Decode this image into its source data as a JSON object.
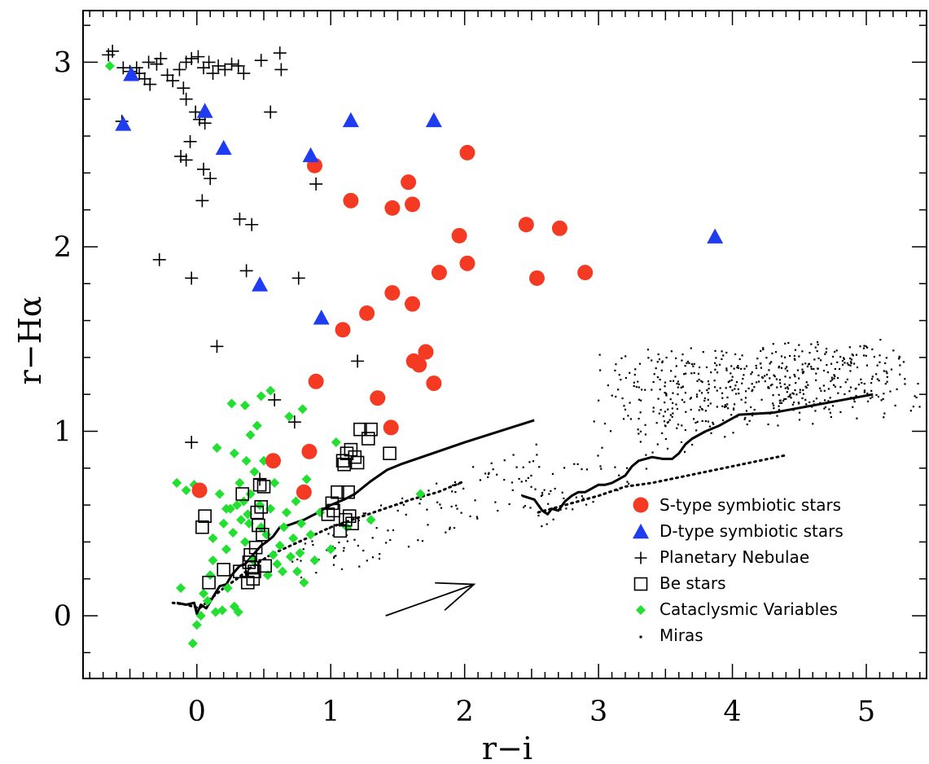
{
  "chart_data": {
    "type": "scatter",
    "xlabel": "r−i",
    "ylabel": "r−Hα",
    "xlim": [
      -0.85,
      5.45
    ],
    "ylim": [
      -0.34,
      3.28
    ],
    "xticks": [
      "0",
      "1",
      "2",
      "3",
      "4",
      "5"
    ],
    "yticks": [
      "0",
      "1",
      "2",
      "3"
    ],
    "grid": false,
    "legend": {
      "placement": "bottom-right",
      "entries": [
        "S-type symbiotic stars",
        "D-type symbiotic stars",
        "Planetary Nebulae",
        "Be stars",
        "Cataclysmic Variables",
        "Miras"
      ]
    },
    "colors": {
      "s_type": "#f53a24",
      "d_type": "#1f3cf0",
      "planetary_nebulae": "#000000",
      "be_stars": "#000000",
      "cataclysmic_variables": "#22e030",
      "miras": "#000000",
      "tracks": "#000000"
    },
    "s_type_symbiotic_stars": [
      [
        0.02,
        0.68
      ],
      [
        0.57,
        0.84
      ],
      [
        0.8,
        0.67
      ],
      [
        0.84,
        0.89
      ],
      [
        0.89,
        1.27
      ],
      [
        0.88,
        2.44
      ],
      [
        1.09,
        1.55
      ],
      [
        1.15,
        2.25
      ],
      [
        1.27,
        1.64
      ],
      [
        1.35,
        1.18
      ],
      [
        1.45,
        1.02
      ],
      [
        1.46,
        2.21
      ],
      [
        1.46,
        1.75
      ],
      [
        1.58,
        2.35
      ],
      [
        1.61,
        2.23
      ],
      [
        1.61,
        1.69
      ],
      [
        1.62,
        1.38
      ],
      [
        1.66,
        1.36
      ],
      [
        1.71,
        1.43
      ],
      [
        1.77,
        1.26
      ],
      [
        1.81,
        1.86
      ],
      [
        1.96,
        2.06
      ],
      [
        2.02,
        2.51
      ],
      [
        2.02,
        1.91
      ],
      [
        2.46,
        2.12
      ],
      [
        2.54,
        1.83
      ],
      [
        2.71,
        2.1
      ],
      [
        2.9,
        1.86
      ]
    ],
    "d_type_symbiotic_stars": [
      [
        -0.49,
        2.93
      ],
      [
        -0.55,
        2.66
      ],
      [
        0.06,
        2.73
      ],
      [
        0.2,
        2.53
      ],
      [
        0.47,
        1.79
      ],
      [
        0.85,
        2.49
      ],
      [
        0.93,
        1.61
      ],
      [
        1.15,
        2.68
      ],
      [
        1.77,
        2.68
      ],
      [
        3.87,
        2.05
      ]
    ],
    "planetary_nebulae": [
      [
        -0.63,
        3.06
      ],
      [
        -0.66,
        3.04
      ],
      [
        -0.55,
        2.97
      ],
      [
        -0.5,
        2.95
      ],
      [
        -0.45,
        2.97
      ],
      [
        -0.43,
        2.94
      ],
      [
        -0.39,
        2.91
      ],
      [
        -0.35,
        2.88
      ],
      [
        -0.3,
        2.99
      ],
      [
        -0.27,
        3.02
      ],
      [
        -0.22,
        2.93
      ],
      [
        -0.18,
        2.9
      ],
      [
        -0.13,
        2.96
      ],
      [
        -0.08,
        3.0
      ],
      [
        -0.04,
        3.02
      ],
      [
        0.01,
        3.03
      ],
      [
        0.05,
        2.97
      ],
      [
        0.09,
        3.0
      ],
      [
        0.12,
        2.94
      ],
      [
        0.16,
        2.98
      ],
      [
        0.21,
        2.96
      ],
      [
        0.26,
        2.99
      ],
      [
        0.31,
        2.98
      ],
      [
        0.35,
        2.94
      ],
      [
        0.48,
        3.01
      ],
      [
        0.62,
        3.05
      ],
      [
        0.63,
        2.96
      ],
      [
        -0.36,
        3.0
      ],
      [
        -0.1,
        2.86
      ],
      [
        -0.08,
        2.8
      ],
      [
        -0.01,
        2.73
      ],
      [
        0.02,
        2.69
      ],
      [
        0.06,
        2.67
      ],
      [
        -0.56,
        2.68
      ],
      [
        0.55,
        2.73
      ],
      [
        -0.12,
        2.49
      ],
      [
        -0.05,
        2.57
      ],
      [
        -0.08,
        2.47
      ],
      [
        0.05,
        2.42
      ],
      [
        0.1,
        2.37
      ],
      [
        0.04,
        2.25
      ],
      [
        0.89,
        2.34
      ],
      [
        0.32,
        2.15
      ],
      [
        0.41,
        2.12
      ],
      [
        -0.28,
        1.93
      ],
      [
        -0.04,
        1.83
      ],
      [
        0.37,
        1.87
      ],
      [
        0.76,
        1.83
      ],
      [
        0.15,
        1.46
      ],
      [
        1.2,
        1.38
      ],
      [
        0.58,
        1.17
      ],
      [
        0.73,
        1.05
      ],
      [
        -0.04,
        0.94
      ],
      [
        0.47,
        0.74
      ]
    ],
    "be_stars": [
      [
        0.04,
        0.48
      ],
      [
        0.06,
        0.54
      ],
      [
        0.09,
        0.18
      ],
      [
        0.2,
        0.25
      ],
      [
        0.32,
        0.24
      ],
      [
        0.34,
        0.66
      ],
      [
        0.38,
        0.18
      ],
      [
        0.39,
        0.29
      ],
      [
        0.4,
        0.33
      ],
      [
        0.41,
        0.26
      ],
      [
        0.42,
        0.2
      ],
      [
        0.43,
        0.24
      ],
      [
        0.44,
        0.37
      ],
      [
        0.45,
        0.56
      ],
      [
        0.46,
        0.49
      ],
      [
        0.47,
        0.71
      ],
      [
        0.48,
        0.59
      ],
      [
        0.49,
        0.44
      ],
      [
        0.5,
        0.7
      ],
      [
        0.51,
        0.27
      ],
      [
        0.98,
        0.55
      ],
      [
        1.01,
        0.61
      ],
      [
        1.02,
        0.57
      ],
      [
        1.05,
        0.67
      ],
      [
        1.07,
        0.46
      ],
      [
        1.09,
        0.84
      ],
      [
        1.1,
        0.82
      ],
      [
        1.11,
        0.52
      ],
      [
        1.12,
        0.88
      ],
      [
        1.13,
        0.67
      ],
      [
        1.14,
        0.54
      ],
      [
        1.15,
        0.9
      ],
      [
        1.16,
        0.5
      ],
      [
        1.18,
        0.86
      ],
      [
        1.2,
        0.83
      ],
      [
        1.22,
        1.01
      ],
      [
        1.28,
        0.96
      ],
      [
        1.3,
        1.01
      ],
      [
        1.44,
        0.88
      ]
    ],
    "cataclysmic_variables": [
      [
        -0.65,
        2.98
      ],
      [
        -0.15,
        0.72
      ],
      [
        -0.08,
        0.68
      ],
      [
        -0.02,
        0.71
      ],
      [
        -0.12,
        0.15
      ],
      [
        0.0,
        -0.05
      ],
      [
        0.03,
        0.0
      ],
      [
        0.05,
        0.12
      ],
      [
        0.08,
        0.08
      ],
      [
        0.1,
        0.22
      ],
      [
        0.12,
        0.3
      ],
      [
        0.14,
        0.02
      ],
      [
        0.15,
        0.91
      ],
      [
        0.17,
        0.66
      ],
      [
        0.2,
        0.5
      ],
      [
        0.22,
        0.36
      ],
      [
        0.25,
        0.58
      ],
      [
        0.27,
        0.45
      ],
      [
        0.28,
        0.05
      ],
      [
        0.3,
        0.6
      ],
      [
        0.32,
        0.72
      ],
      [
        0.33,
        0.52
      ],
      [
        0.35,
        0.62
      ],
      [
        0.36,
        0.4
      ],
      [
        0.37,
        0.84
      ],
      [
        0.38,
        0.55
      ],
      [
        0.39,
        0.5
      ],
      [
        0.4,
        0.66
      ],
      [
        0.42,
        0.3
      ],
      [
        0.43,
        0.78
      ],
      [
        0.45,
        1.03
      ],
      [
        0.47,
        0.6
      ],
      [
        0.48,
        0.48
      ],
      [
        0.5,
        0.84
      ],
      [
        0.52,
        0.44
      ],
      [
        0.53,
        0.22
      ],
      [
        0.55,
        0.58
      ],
      [
        0.57,
        0.33
      ],
      [
        0.58,
        0.72
      ],
      [
        0.6,
        0.28
      ],
      [
        0.62,
        0.38
      ],
      [
        0.64,
        0.24
      ],
      [
        0.65,
        0.48
      ],
      [
        0.67,
        0.56
      ],
      [
        0.69,
        1.08
      ],
      [
        0.7,
        0.32
      ],
      [
        0.72,
        0.42
      ],
      [
        0.74,
        0.62
      ],
      [
        0.75,
        0.24
      ],
      [
        0.77,
        0.34
      ],
      [
        0.78,
        0.5
      ],
      [
        0.79,
        1.12
      ],
      [
        0.8,
        0.18
      ],
      [
        0.82,
        0.74
      ],
      [
        0.85,
        0.44
      ],
      [
        0.88,
        0.3
      ],
      [
        0.92,
        0.56
      ],
      [
        1.0,
        0.36
      ],
      [
        1.04,
        0.94
      ],
      [
        1.12,
        0.48
      ],
      [
        1.3,
        0.52
      ],
      [
        1.67,
        0.66
      ],
      [
        0.26,
        1.15
      ],
      [
        0.36,
        1.14
      ],
      [
        0.48,
        1.19
      ],
      [
        0.55,
        1.22
      ],
      [
        0.23,
        0.15
      ],
      [
        0.31,
        0.02
      ],
      [
        0.22,
        0.58
      ],
      [
        0.28,
        0.88
      ],
      [
        0.4,
        0.98
      ],
      [
        -0.03,
        -0.15
      ],
      [
        0.12,
        0.42
      ],
      [
        0.19,
        0.03
      ]
    ],
    "miras_cloud": {
      "x_range": [
        0.7,
        5.4
      ],
      "y_range": [
        0.2,
        1.5
      ],
      "count": 720
    },
    "track_solid_left": [
      [
        -0.15,
        0.07
      ],
      [
        -0.08,
        0.06
      ],
      [
        -0.02,
        0.07
      ],
      [
        0.0,
        0.01
      ],
      [
        0.03,
        0.06
      ],
      [
        0.07,
        0.04
      ],
      [
        0.12,
        0.1
      ],
      [
        0.17,
        0.16
      ],
      [
        0.22,
        0.17
      ],
      [
        0.26,
        0.22
      ],
      [
        0.32,
        0.27
      ],
      [
        0.36,
        0.28
      ],
      [
        0.42,
        0.33
      ],
      [
        0.48,
        0.38
      ],
      [
        0.52,
        0.4
      ],
      [
        0.57,
        0.43
      ],
      [
        0.62,
        0.48
      ],
      [
        0.68,
        0.49
      ],
      [
        0.72,
        0.5
      ],
      [
        0.8,
        0.52
      ],
      [
        0.88,
        0.55
      ],
      [
        1.0,
        0.6
      ],
      [
        1.1,
        0.63
      ],
      [
        1.18,
        0.66
      ],
      [
        1.3,
        0.73
      ],
      [
        1.42,
        0.79
      ],
      [
        1.52,
        0.82
      ],
      [
        2.0,
        0.94
      ],
      [
        2.52,
        1.06
      ]
    ],
    "track_dotted_left": [
      [
        -0.18,
        0.07
      ],
      [
        -0.08,
        0.06
      ],
      [
        0.02,
        0.04
      ],
      [
        0.1,
        0.09
      ],
      [
        0.2,
        0.15
      ],
      [
        0.3,
        0.2
      ],
      [
        0.4,
        0.26
      ],
      [
        0.55,
        0.33
      ],
      [
        0.7,
        0.38
      ],
      [
        0.85,
        0.43
      ],
      [
        1.0,
        0.48
      ],
      [
        1.2,
        0.53
      ],
      [
        1.4,
        0.58
      ],
      [
        1.6,
        0.63
      ],
      [
        1.8,
        0.67
      ],
      [
        2.0,
        0.73
      ]
    ],
    "track_solid_right": [
      [
        2.43,
        0.65
      ],
      [
        2.52,
        0.63
      ],
      [
        2.58,
        0.57
      ],
      [
        2.62,
        0.55
      ],
      [
        2.65,
        0.58
      ],
      [
        2.7,
        0.57
      ],
      [
        2.75,
        0.62
      ],
      [
        2.8,
        0.65
      ],
      [
        2.85,
        0.67
      ],
      [
        2.9,
        0.67
      ],
      [
        2.95,
        0.69
      ],
      [
        3.0,
        0.71
      ],
      [
        3.05,
        0.71
      ],
      [
        3.1,
        0.72
      ],
      [
        3.15,
        0.74
      ],
      [
        3.2,
        0.76
      ],
      [
        3.25,
        0.81
      ],
      [
        3.3,
        0.84
      ],
      [
        3.4,
        0.86
      ],
      [
        3.48,
        0.85
      ],
      [
        3.55,
        0.85
      ],
      [
        3.6,
        0.88
      ],
      [
        3.65,
        0.93
      ],
      [
        3.7,
        0.96
      ],
      [
        3.8,
        1.0
      ],
      [
        3.9,
        1.03
      ],
      [
        4.05,
        1.09
      ],
      [
        4.3,
        1.1
      ],
      [
        4.6,
        1.14
      ],
      [
        5.05,
        1.2
      ]
    ],
    "track_dotted_right": [
      [
        2.55,
        0.56
      ],
      [
        2.7,
        0.59
      ],
      [
        2.85,
        0.62
      ],
      [
        3.0,
        0.65
      ],
      [
        3.2,
        0.7
      ],
      [
        3.4,
        0.72
      ],
      [
        3.6,
        0.75
      ],
      [
        3.8,
        0.78
      ],
      [
        4.0,
        0.81
      ],
      [
        4.2,
        0.84
      ],
      [
        4.4,
        0.87
      ]
    ],
    "reddening_vector": {
      "from": [
        1.41,
        0.0
      ],
      "to": [
        2.07,
        0.17
      ]
    }
  }
}
